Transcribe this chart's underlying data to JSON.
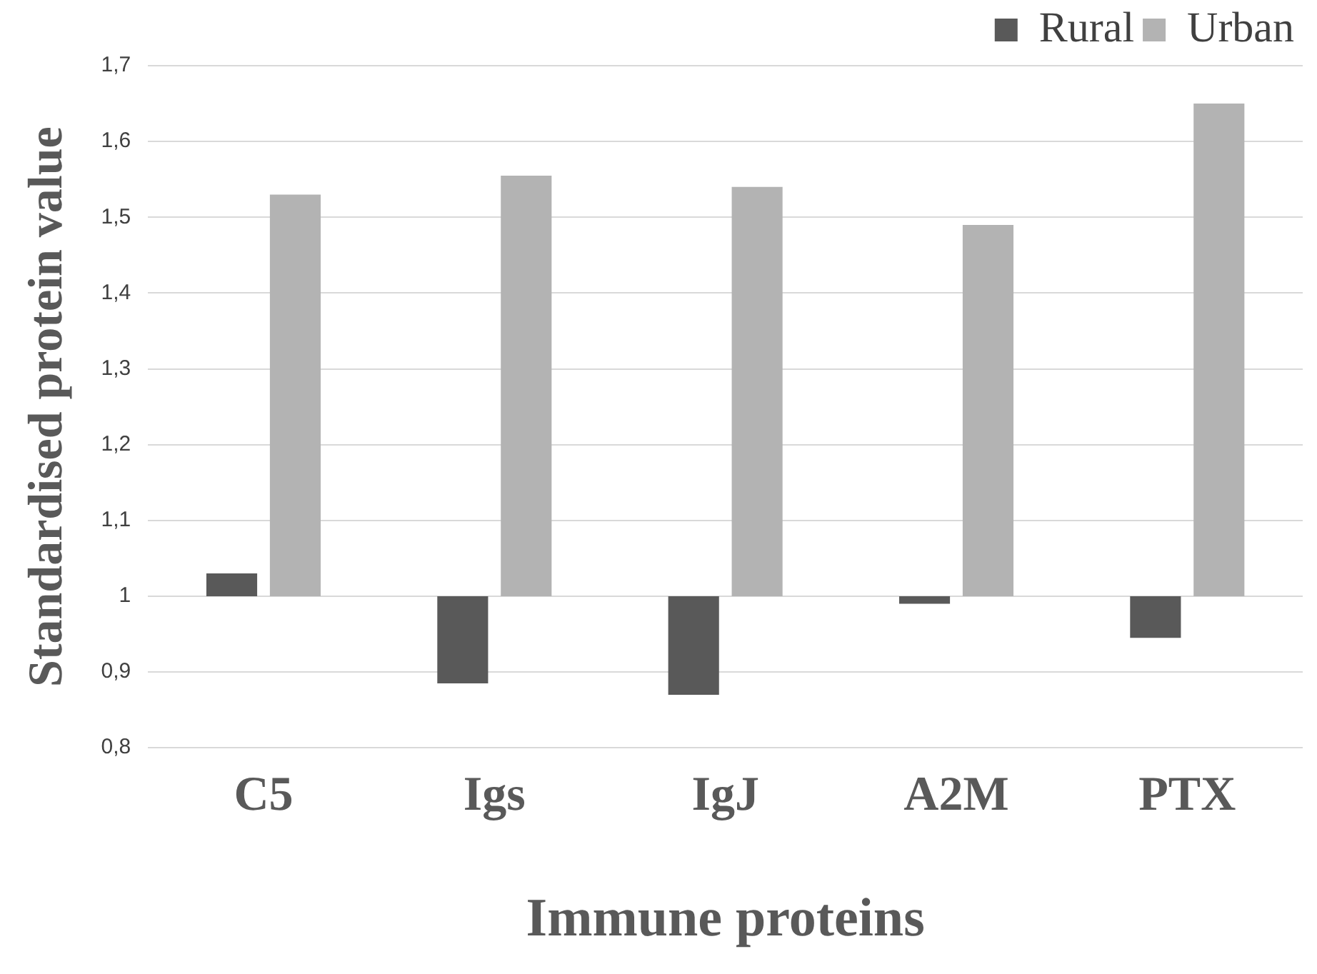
{
  "chart_data": {
    "type": "bar",
    "xlabel": "Immune proteins",
    "ylabel": "Standardised protein value",
    "categories": [
      "C5",
      "Igs",
      "IgJ",
      "A2M",
      "PTX"
    ],
    "series": [
      {
        "name": "Rural",
        "color": "#595959",
        "base": [
          1,
          1,
          1,
          1,
          1
        ],
        "values": [
          0.03,
          -0.115,
          -0.13,
          -0.01,
          -0.055
        ]
      },
      {
        "name": "Urban",
        "color": "#b3b3b3",
        "base": [
          1,
          1,
          1,
          1,
          1
        ],
        "values": [
          0.53,
          0.555,
          0.54,
          0.49,
          0.65
        ]
      }
    ],
    "ylim": [
      0.8,
      1.7
    ],
    "yticks": [
      {
        "value": 0.8,
        "label": "0,8"
      },
      {
        "value": 0.9,
        "label": "0,9"
      },
      {
        "value": 1,
        "label": "1"
      },
      {
        "value": 1.1,
        "label": "1,1"
      },
      {
        "value": 1.2,
        "label": "1,2"
      },
      {
        "value": 1.3,
        "label": "1,3"
      },
      {
        "value": 1.4,
        "label": "1,4"
      },
      {
        "value": 1.5,
        "label": "1,5"
      },
      {
        "value": 1.6,
        "label": "1,6"
      },
      {
        "value": 1.7,
        "label": "1,7"
      }
    ],
    "grid": "y",
    "legend": "top right"
  }
}
